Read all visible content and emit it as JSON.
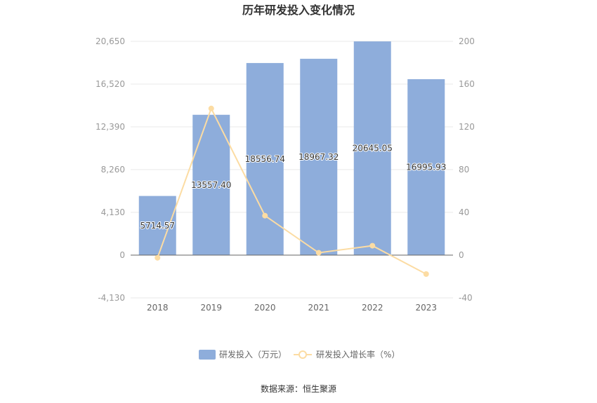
{
  "chart_data": {
    "type": "bar",
    "title": "历年研发投入变化情况",
    "categories": [
      "2018",
      "2019",
      "2020",
      "2021",
      "2022",
      "2023"
    ],
    "series": [
      {
        "name": "研发投入（万元）",
        "type": "bar",
        "axis": "left",
        "values": [
          5714.57,
          13557.4,
          18556.74,
          18967.32,
          20645.05,
          16995.93
        ],
        "labels": [
          "5714.57",
          "13557.40",
          "18556.74",
          "18967.32",
          "20645.05",
          "16995.93"
        ]
      },
      {
        "name": "研发投入增长率（%）",
        "type": "line",
        "axis": "right",
        "values": [
          -2.5,
          137.2,
          36.9,
          2.2,
          8.8,
          -17.7
        ]
      }
    ],
    "y_left": {
      "ylim": [
        -4130,
        20650
      ],
      "ticks": [
        "-4,130",
        "0",
        "4,130",
        "8,260",
        "12,390",
        "16,520",
        "20,650"
      ]
    },
    "y_right": {
      "ylim": [
        -40,
        200
      ],
      "ticks": [
        "-40",
        "0",
        "40",
        "80",
        "120",
        "160",
        "200"
      ]
    },
    "grid": true,
    "legend_position": "bottom",
    "colors": {
      "bar": "#8eaddb",
      "line": "#fcdca3",
      "grid": "#e8e8e8",
      "axis": "#666666"
    }
  },
  "source_note": "数据来源：恒生聚源"
}
